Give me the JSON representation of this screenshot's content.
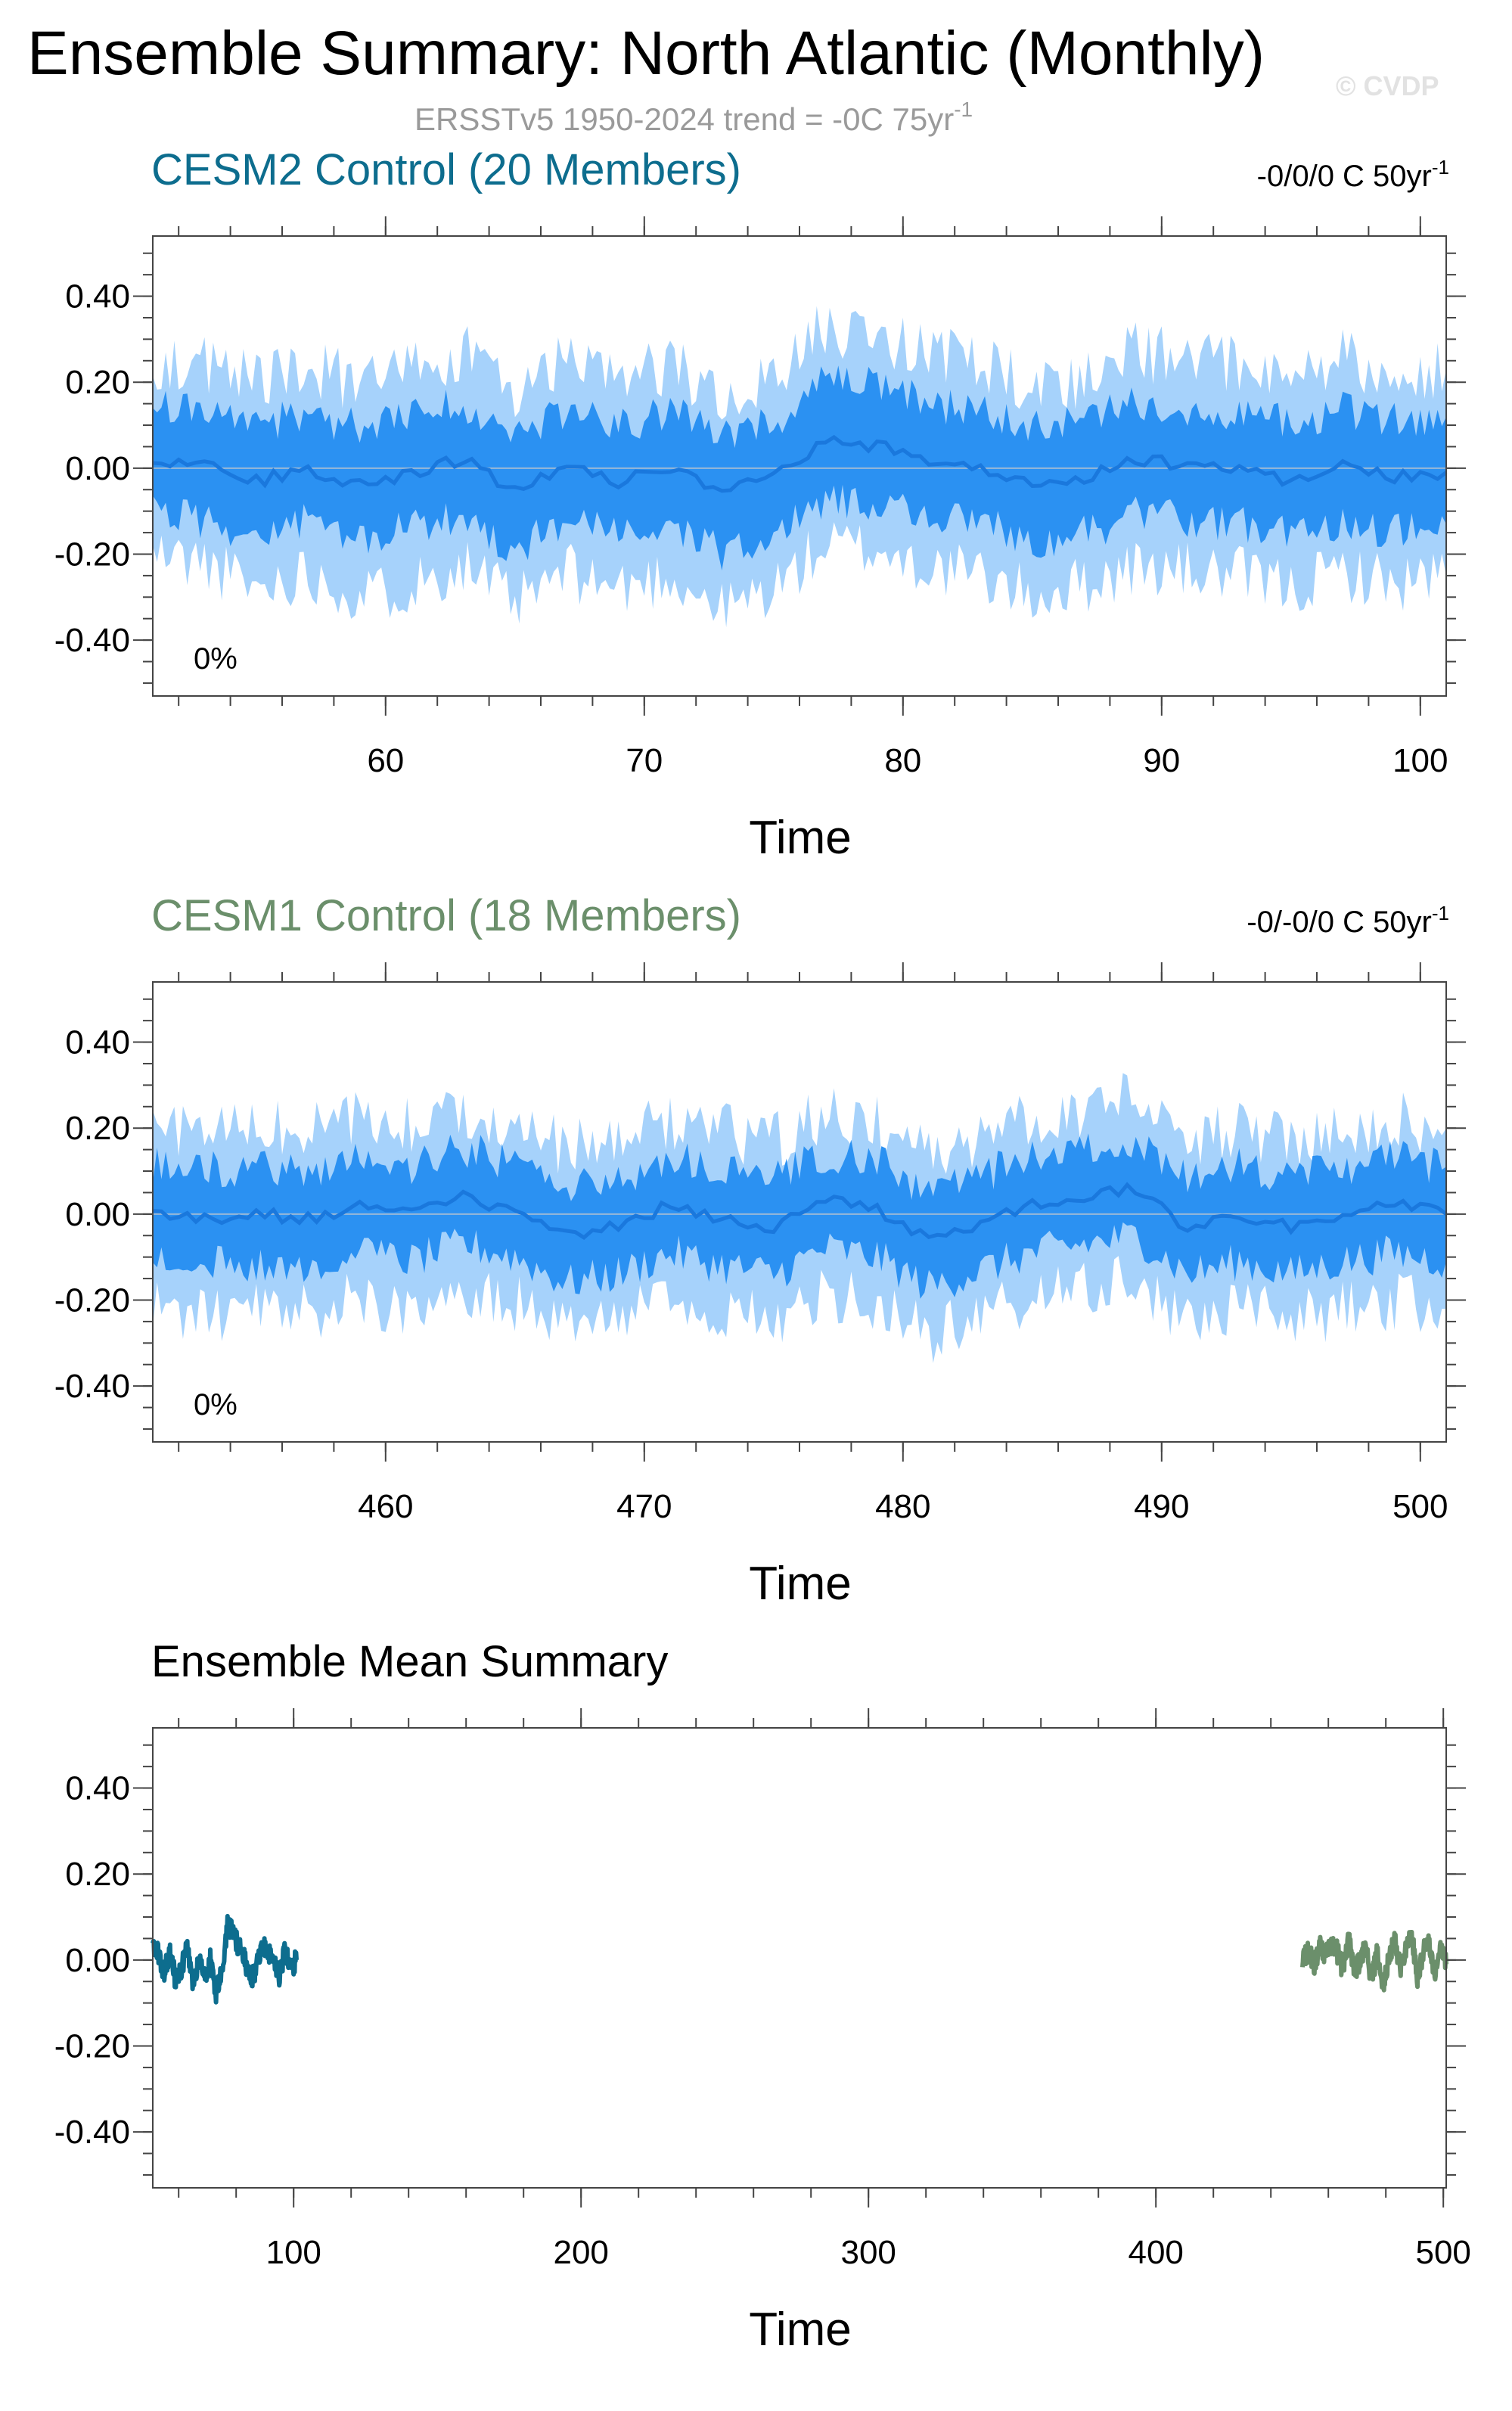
{
  "title": "Ensemble Summary: North Atlantic (Monthly)",
  "subtitle": {
    "base": "ERSSTv5 1950-2024 trend = -0C 75yr",
    "sup": "-1"
  },
  "watermark": "© CVDP",
  "colors": {
    "cesm2": "#0d6d8e",
    "cesm1": "#6b8f6b",
    "band_outer": "#a6d2fb",
    "band_inner": "#2b91f2",
    "mean_line": "#1a78dd",
    "zero_line": "#9ab8d6"
  },
  "panels": [
    {
      "id": "cesm2",
      "title": "CESM2 Control (20 Members)",
      "trend_label": {
        "base": "-0/0/0 C 50yr",
        "sup": "-1"
      },
      "percent_label": "0%",
      "xlabel": "Time",
      "x_ticks": [
        "60",
        "70",
        "80",
        "90",
        "100"
      ],
      "y_ticks": [
        "0.40",
        "0.20",
        "0.00",
        "-0.20",
        "-0.40"
      ]
    },
    {
      "id": "cesm1",
      "title": "CESM1 Control (18 Members)",
      "trend_label": {
        "base": "-0/-0/0 C 50yr",
        "sup": "-1"
      },
      "percent_label": "0%",
      "xlabel": "Time",
      "x_ticks": [
        "460",
        "470",
        "480",
        "490",
        "500"
      ],
      "y_ticks": [
        "0.40",
        "0.20",
        "0.00",
        "-0.20",
        "-0.40"
      ]
    },
    {
      "id": "summary",
      "title": "Ensemble Mean Summary",
      "xlabel": "Time",
      "x_ticks": [
        "100",
        "200",
        "300",
        "400",
        "500"
      ],
      "y_ticks": [
        "0.40",
        "0.20",
        "0.00",
        "-0.20",
        "-0.40"
      ]
    }
  ],
  "chart_data": [
    {
      "type": "area",
      "title": "CESM2 Control (20 Members)",
      "xlabel": "Time",
      "ylabel": "",
      "xlim": [
        51,
        101
      ],
      "ylim": [
        -0.53,
        0.54
      ],
      "grid": false,
      "series": [
        {
          "role": "ensemble mean",
          "x": [
            51,
            53,
            55,
            57,
            59,
            61,
            63,
            65,
            67,
            69,
            71,
            73,
            75,
            77,
            79,
            81,
            83,
            85,
            87,
            89,
            91,
            93,
            95,
            97,
            99,
            101
          ],
          "y": [
            0.02,
            0.01,
            -0.03,
            0.0,
            -0.04,
            -0.01,
            0.02,
            -0.05,
            0.01,
            -0.03,
            0.0,
            -0.06,
            -0.02,
            0.06,
            0.05,
            0.02,
            0.0,
            -0.04,
            -0.02,
            0.02,
            0.01,
            0.0,
            -0.03,
            0.01,
            -0.02,
            -0.01
          ]
        },
        {
          "role": "inner range (lower/upper)",
          "x": [
            51,
            53,
            55,
            57,
            59,
            61,
            63,
            65,
            67,
            69,
            71,
            73,
            75,
            77,
            79,
            81,
            83,
            85,
            87,
            89,
            91,
            93,
            95,
            97,
            99,
            101
          ],
          "lower": [
            -0.1,
            -0.12,
            -0.16,
            -0.12,
            -0.17,
            -0.14,
            -0.11,
            -0.19,
            -0.12,
            -0.16,
            -0.13,
            -0.2,
            -0.16,
            -0.07,
            -0.08,
            -0.11,
            -0.13,
            -0.17,
            -0.15,
            -0.11,
            -0.12,
            -0.13,
            -0.16,
            -0.12,
            -0.15,
            -0.13
          ],
          "upper": [
            0.14,
            0.13,
            0.1,
            0.13,
            0.09,
            0.12,
            0.15,
            0.08,
            0.14,
            0.1,
            0.13,
            0.07,
            0.11,
            0.2,
            0.19,
            0.15,
            0.13,
            0.09,
            0.11,
            0.15,
            0.14,
            0.13,
            0.1,
            0.14,
            0.11,
            0.12
          ]
        },
        {
          "role": "full range (lower/upper)",
          "x": [
            51,
            53,
            55,
            57,
            59,
            61,
            63,
            65,
            67,
            69,
            71,
            73,
            75,
            77,
            79,
            81,
            83,
            85,
            87,
            89,
            91,
            93,
            95,
            97,
            99,
            101
          ],
          "lower": [
            -0.2,
            -0.22,
            -0.28,
            -0.24,
            -0.3,
            -0.27,
            -0.22,
            -0.32,
            -0.24,
            -0.28,
            -0.25,
            -0.33,
            -0.28,
            -0.18,
            -0.19,
            -0.23,
            -0.25,
            -0.3,
            -0.27,
            -0.23,
            -0.24,
            -0.25,
            -0.28,
            -0.24,
            -0.27,
            -0.25
          ],
          "upper": [
            0.25,
            0.24,
            0.2,
            0.24,
            0.19,
            0.22,
            0.27,
            0.17,
            0.25,
            0.2,
            0.24,
            0.16,
            0.21,
            0.33,
            0.31,
            0.27,
            0.24,
            0.19,
            0.21,
            0.27,
            0.25,
            0.24,
            0.2,
            0.26,
            0.21,
            0.23
          ]
        }
      ]
    },
    {
      "type": "area",
      "title": "CESM1 Control (18 Members)",
      "xlabel": "Time",
      "ylabel": "",
      "xlim": [
        451,
        501
      ],
      "ylim": [
        -0.53,
        0.54
      ],
      "grid": false,
      "series": [
        {
          "role": "ensemble mean",
          "x": [
            451,
            453,
            455,
            457,
            459,
            461,
            463,
            465,
            467,
            469,
            471,
            473,
            475,
            477,
            479,
            481,
            483,
            485,
            487,
            489,
            491,
            493,
            495,
            497,
            499,
            501
          ],
          "y": [
            0.0,
            -0.01,
            0.0,
            -0.01,
            0.02,
            0.0,
            0.04,
            0.01,
            -0.05,
            -0.03,
            0.02,
            -0.01,
            -0.03,
            0.03,
            0.01,
            -0.06,
            -0.02,
            0.02,
            0.04,
            0.06,
            -0.03,
            0.0,
            -0.03,
            0.0,
            0.02,
            0.0
          ]
        },
        {
          "role": "inner range (lower/upper)",
          "x": [
            451,
            453,
            455,
            457,
            459,
            461,
            463,
            465,
            467,
            469,
            471,
            473,
            475,
            477,
            479,
            481,
            483,
            485,
            487,
            489,
            491,
            493,
            495,
            497,
            499,
            501
          ],
          "lower": [
            -0.11,
            -0.12,
            -0.11,
            -0.12,
            -0.09,
            -0.11,
            -0.07,
            -0.1,
            -0.16,
            -0.14,
            -0.09,
            -0.12,
            -0.14,
            -0.08,
            -0.1,
            -0.17,
            -0.13,
            -0.09,
            -0.07,
            -0.05,
            -0.14,
            -0.11,
            -0.14,
            -0.11,
            -0.09,
            -0.11
          ],
          "upper": [
            0.11,
            0.1,
            0.11,
            0.1,
            0.13,
            0.11,
            0.15,
            0.12,
            0.06,
            0.08,
            0.13,
            0.1,
            0.08,
            0.14,
            0.12,
            0.05,
            0.09,
            0.13,
            0.15,
            0.17,
            0.08,
            0.11,
            0.08,
            0.11,
            0.13,
            0.11
          ]
        },
        {
          "role": "full range (lower/upper)",
          "x": [
            451,
            453,
            455,
            457,
            459,
            461,
            463,
            465,
            467,
            469,
            471,
            473,
            475,
            477,
            479,
            481,
            483,
            485,
            487,
            489,
            491,
            493,
            495,
            497,
            499,
            501
          ],
          "lower": [
            -0.22,
            -0.23,
            -0.22,
            -0.23,
            -0.2,
            -0.22,
            -0.18,
            -0.21,
            -0.27,
            -0.25,
            -0.2,
            -0.23,
            -0.25,
            -0.19,
            -0.21,
            -0.28,
            -0.24,
            -0.2,
            -0.18,
            -0.16,
            -0.25,
            -0.22,
            -0.25,
            -0.22,
            -0.2,
            -0.22
          ],
          "upper": [
            0.2,
            0.19,
            0.2,
            0.19,
            0.22,
            0.2,
            0.25,
            0.21,
            0.15,
            0.17,
            0.22,
            0.19,
            0.17,
            0.23,
            0.21,
            0.14,
            0.18,
            0.22,
            0.25,
            0.28,
            0.17,
            0.2,
            0.17,
            0.2,
            0.22,
            0.2
          ]
        }
      ]
    },
    {
      "type": "line",
      "title": "Ensemble Mean Summary",
      "xlabel": "Time",
      "ylabel": "",
      "xlim": [
        51,
        501
      ],
      "ylim": [
        -0.53,
        0.54
      ],
      "grid": false,
      "series": [
        {
          "name": "CESM2 Control (20 Members)",
          "x": [
            51,
            53,
            55,
            57,
            59,
            61,
            63,
            65,
            67,
            69,
            71,
            73,
            75,
            77,
            79,
            81,
            83,
            85,
            87,
            89,
            91,
            93,
            95,
            97,
            99,
            101
          ],
          "y": [
            0.04,
            0.01,
            -0.03,
            0.02,
            -0.05,
            -0.02,
            0.03,
            -0.07,
            0.01,
            -0.04,
            0.0,
            -0.08,
            -0.02,
            0.08,
            0.06,
            0.03,
            0.0,
            -0.05,
            -0.02,
            0.03,
            0.02,
            0.0,
            -0.04,
            0.02,
            -0.02,
            0.0
          ]
        },
        {
          "name": "CESM1 Control (18 Members)",
          "x": [
            451,
            453,
            455,
            457,
            459,
            461,
            463,
            465,
            467,
            469,
            471,
            473,
            475,
            477,
            479,
            481,
            483,
            485,
            487,
            489,
            491,
            493,
            495,
            497,
            499,
            501
          ],
          "y": [
            0.0,
            0.02,
            -0.01,
            0.03,
            0.01,
            0.04,
            0.02,
            -0.02,
            0.05,
            -0.03,
            0.0,
            0.04,
            -0.05,
            0.02,
            -0.07,
            0.01,
            0.05,
            -0.02,
            0.03,
            0.06,
            -0.04,
            0.02,
            0.04,
            -0.03,
            0.02,
            -0.01
          ]
        }
      ]
    }
  ]
}
